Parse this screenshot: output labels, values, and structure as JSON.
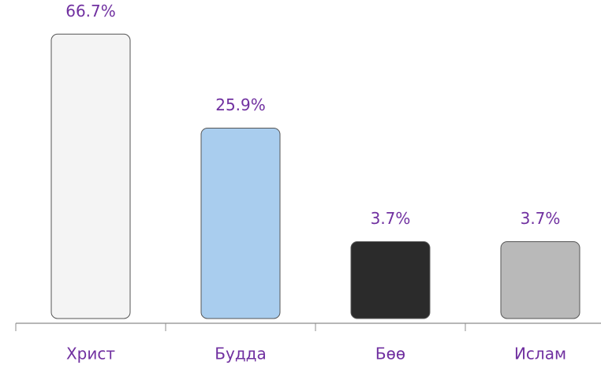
{
  "chart_data": {
    "type": "pictograph",
    "categories": [
      "Христ",
      "Будда",
      "Бөө",
      "Ислам"
    ],
    "values": [
      66.7,
      25.9,
      3.7,
      3.7
    ],
    "value_labels": [
      "66.7%",
      "25.9%",
      "3.7%",
      "3.7%"
    ],
    "colors": [
      "#f4f4f4",
      "#a9cdee",
      "#2b2b2b",
      "#b9b9b9"
    ],
    "label_color": "#7030a0"
  }
}
